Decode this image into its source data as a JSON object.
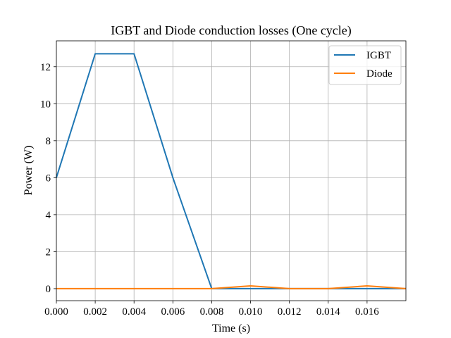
{
  "chart_data": {
    "type": "line",
    "title": "IGBT and Diode conduction losses (One cycle)",
    "xlabel": "Time (s)",
    "ylabel": "Power (W)",
    "xlim": [
      0,
      0.018
    ],
    "ylim": [
      -0.65,
      13.4
    ],
    "xticks": [
      0.0,
      0.002,
      0.004,
      0.006,
      0.008,
      0.01,
      0.012,
      0.014,
      0.016
    ],
    "xtick_labels": [
      "0.000",
      "0.002",
      "0.004",
      "0.006",
      "0.008",
      "0.010",
      "0.012",
      "0.014",
      "0.016"
    ],
    "yticks": [
      0,
      2,
      4,
      6,
      8,
      10,
      12
    ],
    "ytick_labels": [
      "0",
      "2",
      "4",
      "6",
      "8",
      "10",
      "12"
    ],
    "grid": true,
    "legend_position": "top-right",
    "x": [
      0.0,
      0.002,
      0.004,
      0.006,
      0.008,
      0.01,
      0.012,
      0.014,
      0.016,
      0.018
    ],
    "series": [
      {
        "name": "IGBT",
        "color": "#1f77b4",
        "values": [
          6.0,
          12.7,
          12.7,
          6.0,
          0.0,
          0.0,
          0.0,
          0.0,
          0.0,
          0.0
        ]
      },
      {
        "name": "Diode",
        "color": "#ff7f0e",
        "values": [
          0.0,
          0.0,
          0.0,
          0.0,
          0.0,
          0.15,
          0.0,
          0.0,
          0.15,
          0.0
        ]
      }
    ]
  }
}
